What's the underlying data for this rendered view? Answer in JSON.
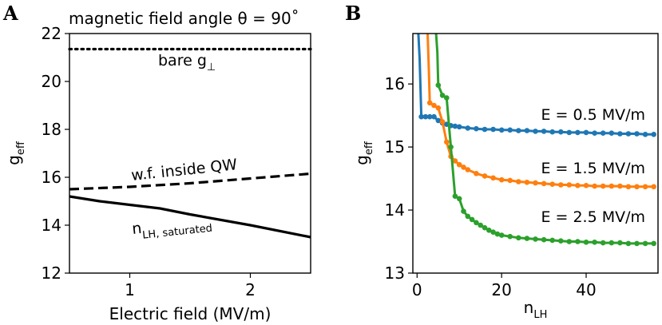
{
  "chart_data": [
    {
      "panel": "A",
      "type": "line",
      "title": "magnetic field angle θ = 90˚",
      "xlabel": "Electric field (MV/m)",
      "ylabel": {
        "main": "g",
        "sub": "eff"
      },
      "xlim": [
        0.5,
        2.5
      ],
      "ylim": [
        12,
        22
      ],
      "xticks": [
        1,
        2
      ],
      "yticks": [
        12,
        14,
        16,
        18,
        20,
        22
      ],
      "grid": false,
      "series": [
        {
          "label": {
            "main": "bare g",
            "sub": "⊥"
          },
          "style": "dotted",
          "color": "#000000",
          "x": [
            0.5,
            2.5
          ],
          "y": [
            21.35,
            21.35
          ]
        },
        {
          "label": {
            "main": "w.f. inside QW",
            "sub": ""
          },
          "style": "dashed",
          "color": "#000000",
          "x": [
            0.5,
            1.0,
            1.5,
            2.0,
            2.5
          ],
          "y": [
            15.5,
            15.6,
            15.75,
            15.95,
            16.15
          ]
        },
        {
          "label": {
            "main": "n",
            "sub": "LH, saturated"
          },
          "style": "solid",
          "color": "#000000",
          "x": [
            0.5,
            0.75,
            1.0,
            1.25,
            1.5,
            2.0,
            2.5
          ],
          "y": [
            15.2,
            15.0,
            14.85,
            14.7,
            14.45,
            14.0,
            13.5
          ]
        }
      ]
    },
    {
      "panel": "B",
      "type": "line",
      "xlabel": {
        "main": "n",
        "sub": "LH"
      },
      "ylabel": {
        "main": "g",
        "sub": "eff"
      },
      "xlim": [
        -1,
        57
      ],
      "ylim": [
        13,
        16.8
      ],
      "xticks": [
        0,
        20,
        40
      ],
      "yticks": [
        13,
        14,
        15,
        16
      ],
      "grid": false,
      "series": [
        {
          "label": "E = 0.5 MV/m",
          "color": "#1f77b4",
          "lead": {
            "x": [
              0.3,
              0.6,
              1
            ],
            "y": [
              16.8,
              16.4,
              15.48
            ]
          },
          "points": [
            [
              1,
              15.48
            ],
            [
              2,
              15.48
            ],
            [
              3,
              15.48
            ],
            [
              4,
              15.48
            ],
            [
              5,
              15.42
            ],
            [
              6,
              15.38
            ],
            [
              7,
              15.36
            ],
            [
              8,
              15.34
            ],
            [
              9,
              15.33
            ],
            [
              10,
              15.32
            ],
            [
              12,
              15.3
            ],
            [
              14,
              15.29
            ],
            [
              16,
              15.28
            ],
            [
              18,
              15.28
            ],
            [
              20,
              15.27
            ],
            [
              22,
              15.27
            ],
            [
              24,
              15.26
            ],
            [
              26,
              15.26
            ],
            [
              28,
              15.25
            ],
            [
              30,
              15.25
            ],
            [
              32,
              15.24
            ],
            [
              34,
              15.24
            ],
            [
              36,
              15.23
            ],
            [
              38,
              15.23
            ],
            [
              40,
              15.23
            ],
            [
              42,
              15.22
            ],
            [
              44,
              15.22
            ],
            [
              46,
              15.22
            ],
            [
              48,
              15.21
            ],
            [
              50,
              15.21
            ],
            [
              52,
              15.21
            ],
            [
              54,
              15.2
            ],
            [
              56,
              15.2
            ]
          ]
        },
        {
          "label": "E = 1.5 MV/m",
          "color": "#ff7f0e",
          "lead": {
            "x": [
              2.5,
              2.8,
              3
            ],
            "y": [
              16.8,
              16.2,
              15.7
            ]
          },
          "points": [
            [
              3,
              15.7
            ],
            [
              4,
              15.66
            ],
            [
              5,
              15.62
            ],
            [
              6,
              15.4
            ],
            [
              7,
              15.08
            ],
            [
              8,
              14.85
            ],
            [
              9,
              14.78
            ],
            [
              10,
              14.72
            ],
            [
              11,
              14.68
            ],
            [
              12,
              14.64
            ],
            [
              14,
              14.58
            ],
            [
              16,
              14.54
            ],
            [
              18,
              14.51
            ],
            [
              20,
              14.48
            ],
            [
              22,
              14.47
            ],
            [
              24,
              14.45
            ],
            [
              26,
              14.44
            ],
            [
              28,
              14.43
            ],
            [
              30,
              14.42
            ],
            [
              32,
              14.41
            ],
            [
              34,
              14.4
            ],
            [
              36,
              14.4
            ],
            [
              38,
              14.39
            ],
            [
              40,
              14.39
            ],
            [
              42,
              14.38
            ],
            [
              44,
              14.38
            ],
            [
              46,
              14.38
            ],
            [
              48,
              14.38
            ],
            [
              50,
              14.37
            ],
            [
              52,
              14.37
            ],
            [
              54,
              14.37
            ],
            [
              56,
              14.37
            ]
          ]
        },
        {
          "label": "E = 2.5 MV/m",
          "color": "#2ca02c",
          "lead": {
            "x": [
              4.5,
              4.8,
              5
            ],
            "y": [
              16.8,
              16.5,
              15.98
            ]
          },
          "points": [
            [
              5,
              15.98
            ],
            [
              6,
              15.82
            ],
            [
              7,
              15.78
            ],
            [
              8,
              15.0
            ],
            [
              9,
              14.22
            ],
            [
              10,
              14.18
            ],
            [
              11,
              13.98
            ],
            [
              12,
              13.9
            ],
            [
              13,
              13.85
            ],
            [
              14,
              13.8
            ],
            [
              15,
              13.76
            ],
            [
              16,
              13.72
            ],
            [
              17,
              13.68
            ],
            [
              18,
              13.65
            ],
            [
              19,
              13.62
            ],
            [
              20,
              13.6
            ],
            [
              22,
              13.58
            ],
            [
              24,
              13.56
            ],
            [
              26,
              13.55
            ],
            [
              28,
              13.54
            ],
            [
              30,
              13.53
            ],
            [
              32,
              13.52
            ],
            [
              34,
              13.51
            ],
            [
              36,
              13.5
            ],
            [
              38,
              13.5
            ],
            [
              40,
              13.49
            ],
            [
              42,
              13.49
            ],
            [
              44,
              13.48
            ],
            [
              46,
              13.48
            ],
            [
              48,
              13.48
            ],
            [
              50,
              13.47
            ],
            [
              52,
              13.47
            ],
            [
              54,
              13.47
            ],
            [
              56,
              13.47
            ]
          ]
        }
      ]
    }
  ]
}
